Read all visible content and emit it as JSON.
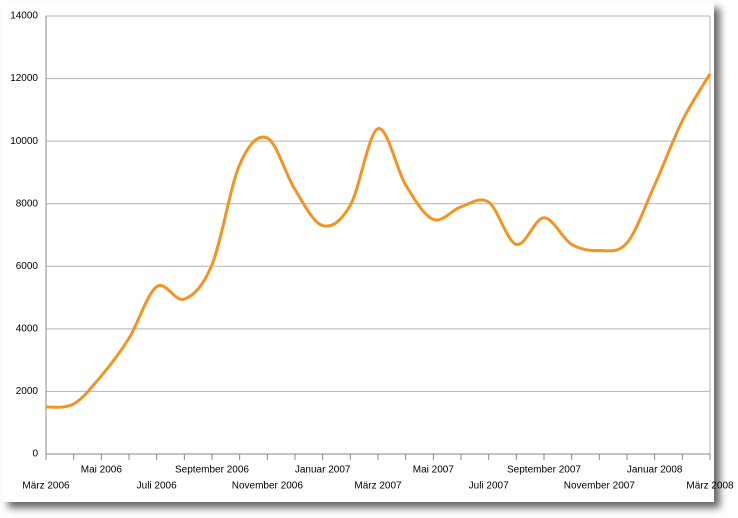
{
  "chart_data": {
    "type": "line",
    "categories": [
      "März 2006",
      null,
      "Mai 2006",
      null,
      "Juli 2006",
      null,
      "September 2006",
      null,
      "November 2006",
      null,
      "Januar 2007",
      null,
      "März 2007",
      null,
      "Mai 2007",
      null,
      "Juli 2007",
      null,
      "September 2007",
      null,
      "November 2007",
      null,
      "Januar 2008",
      null,
      "März 2008"
    ],
    "series": [
      {
        "color": "#f39422",
        "values": [
          1500,
          1600,
          2500,
          3700,
          5350,
          4950,
          6050,
          9250,
          10100,
          8450,
          7300,
          7950,
          10400,
          8600,
          7500,
          7900,
          8050,
          6700,
          7550,
          6700,
          6500,
          6750,
          8600,
          10650,
          12150
        ]
      }
    ],
    "ylim": [
      0,
      14000
    ],
    "yticks": [
      0,
      2000,
      4000,
      6000,
      8000,
      10000,
      12000,
      14000
    ],
    "grid": true
  }
}
